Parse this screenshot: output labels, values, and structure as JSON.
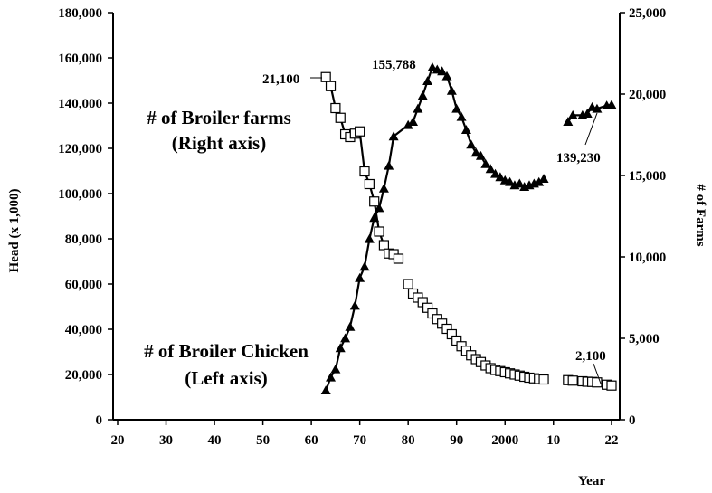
{
  "chart_data": {
    "type": "line",
    "title": "",
    "xlabel": "Year",
    "ylabel_left": "Head (x 1,000)",
    "ylabel_right": "# of Farms",
    "ylim_left": [
      0,
      180000
    ],
    "ylim_right": [
      0,
      25000
    ],
    "grid": false,
    "legend": "none",
    "x_tick_labels": [
      "20",
      "30",
      "40",
      "50",
      "60",
      "70",
      "80",
      "90",
      "2000",
      "10",
      "22"
    ],
    "left_tick_labels": [
      "0",
      "20,000",
      "40,000",
      "60,000",
      "80,000",
      "100,000",
      "120,000",
      "140,000",
      "160,000",
      "180,000"
    ],
    "right_tick_labels": [
      "0",
      "5,000",
      "10,000",
      "15,000",
      "20,000",
      "25,000"
    ],
    "series": [
      {
        "name": "# of Broiler farms\n(Right axis)",
        "axis": "right",
        "marker": "filled-triangle",
        "segments": [
          [
            [
              1963,
              1800
            ],
            [
              1964,
              2600
            ],
            [
              1965,
              3100
            ],
            [
              1966,
              4400
            ],
            [
              1967,
              5000
            ],
            [
              1968,
              5700
            ],
            [
              1969,
              7000
            ],
            [
              1970,
              8700
            ],
            [
              1971,
              9400
            ],
            [
              1972,
              11100
            ],
            [
              1973,
              12400
            ],
            [
              1974,
              13000
            ],
            [
              1975,
              14200
            ],
            [
              1976,
              15600
            ],
            [
              1977,
              17400
            ],
            [
              1980,
              18100
            ],
            [
              1981,
              18300
            ],
            [
              1982,
              19100
            ],
            [
              1983,
              19900
            ],
            [
              1984,
              20800
            ],
            [
              1985,
              21636
            ],
            [
              1986,
              21500
            ],
            [
              1987,
              21400
            ],
            [
              1988,
              21100
            ],
            [
              1989,
              20200
            ],
            [
              1990,
              19100
            ],
            [
              1991,
              18600
            ],
            [
              1992,
              17800
            ],
            [
              1993,
              16900
            ],
            [
              1994,
              16400
            ],
            [
              1995,
              16200
            ],
            [
              1996,
              15700
            ],
            [
              1997,
              15400
            ],
            [
              1998,
              15100
            ],
            [
              1999,
              14900
            ],
            [
              2000,
              14700
            ],
            [
              2001,
              14600
            ],
            [
              2002,
              14400
            ],
            [
              2003,
              14500
            ],
            [
              2004,
              14300
            ],
            [
              2005,
              14400
            ],
            [
              2006,
              14500
            ],
            [
              2007,
              14600
            ],
            [
              2008,
              14800
            ]
          ],
          [
            [
              2013,
              18300
            ],
            [
              2014,
              18700
            ],
            [
              2016,
              18700
            ],
            [
              2017,
              18800
            ],
            [
              2018,
              19200
            ],
            [
              2019,
              19100
            ],
            [
              2021,
              19300
            ],
            [
              2022,
              19337
            ]
          ]
        ]
      },
      {
        "name": "# of Broiler Chicken\n(Left axis)",
        "axis": "left",
        "marker": "open-square",
        "segments": [
          [
            [
              1963,
              151500
            ],
            [
              1964,
              147500
            ],
            [
              1965,
              137800
            ],
            [
              1966,
              133500
            ],
            [
              1967,
              126200
            ],
            [
              1968,
              125000
            ],
            [
              1969,
              126500
            ],
            [
              1970,
              127500
            ],
            [
              1971,
              109800
            ],
            [
              1972,
              104200
            ],
            [
              1973,
              96500
            ],
            [
              1974,
              83200
            ],
            [
              1975,
              77200
            ],
            [
              1976,
              73500
            ],
            [
              1977,
              73200
            ],
            [
              1978,
              71200
            ]
          ],
          [
            [
              1980,
              60000
            ],
            [
              1981,
              55800
            ],
            [
              1982,
              54000
            ],
            [
              1983,
              52000
            ],
            [
              1984,
              49500
            ],
            [
              1985,
              47000
            ],
            [
              1986,
              44500
            ],
            [
              1987,
              42500
            ],
            [
              1988,
              40200
            ],
            [
              1989,
              37800
            ],
            [
              1990,
              35000
            ],
            [
              1991,
              32500
            ],
            [
              1992,
              30500
            ],
            [
              1993,
              28500
            ],
            [
              1994,
              26800
            ],
            [
              1995,
              25500
            ],
            [
              1996,
              24000
            ],
            [
              1997,
              22800
            ],
            [
              1998,
              22000
            ],
            [
              1999,
              21500
            ],
            [
              2000,
              21000
            ],
            [
              2001,
              20500
            ],
            [
              2002,
              20000
            ],
            [
              2003,
              19500
            ],
            [
              2004,
              19000
            ],
            [
              2005,
              18600
            ],
            [
              2006,
              18300
            ],
            [
              2007,
              18000
            ],
            [
              2008,
              17800
            ]
          ],
          [
            [
              2013,
              17500
            ],
            [
              2014,
              17300
            ],
            [
              2016,
              17000
            ],
            [
              2017,
              16800
            ],
            [
              2018,
              16700
            ],
            [
              2019,
              16500
            ],
            [
              2021,
              15500
            ],
            [
              2022,
              15120
            ]
          ]
        ]
      }
    ],
    "annotations": [
      "21,100",
      "155,788",
      "139,230",
      "2,100"
    ]
  }
}
